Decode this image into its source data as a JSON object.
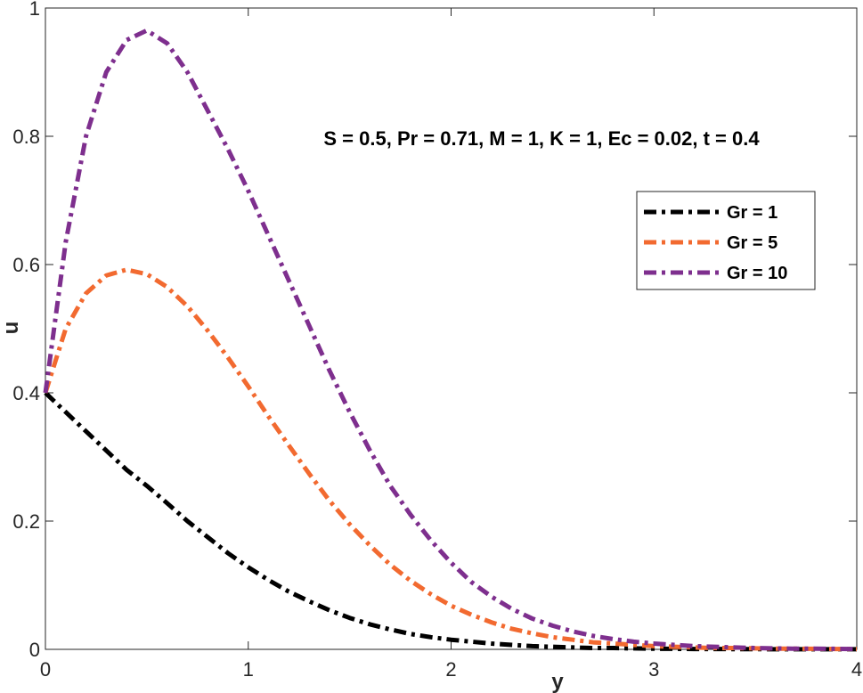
{
  "chart_data": {
    "type": "line",
    "title": "",
    "xlabel": "y",
    "ylabel": "u",
    "xlim": [
      0,
      4
    ],
    "ylim": [
      0,
      1
    ],
    "xticks": [
      "0",
      "1",
      "2",
      "3",
      "4"
    ],
    "yticks": [
      "0",
      "0.2",
      "0.4",
      "0.6",
      "0.8",
      "1"
    ],
    "grid": false,
    "legend_position": "upper-right",
    "annotation": "S = 0.5, Pr = 0.71, M = 1, K = 1, Ec = 0.02, t = 0.4",
    "x": [
      0,
      0.1,
      0.2,
      0.3,
      0.4,
      0.5,
      0.6,
      0.7,
      0.8,
      0.9,
      1.0,
      1.1,
      1.2,
      1.3,
      1.4,
      1.5,
      1.6,
      1.7,
      1.8,
      1.9,
      2.0,
      2.1,
      2.2,
      2.3,
      2.4,
      2.5,
      2.6,
      2.7,
      2.8,
      2.9,
      3.0,
      3.1,
      3.2,
      3.3,
      3.4,
      3.5,
      3.6,
      3.7,
      3.8,
      3.9,
      4.0
    ],
    "series": [
      {
        "name": "Gr  = 1",
        "color": "#000000",
        "values": [
          0.4,
          0.37,
          0.34,
          0.31,
          0.28,
          0.255,
          0.228,
          0.2,
          0.175,
          0.15,
          0.128,
          0.108,
          0.09,
          0.075,
          0.061,
          0.049,
          0.039,
          0.031,
          0.024,
          0.019,
          0.015,
          0.012,
          0.009,
          0.007,
          0.005,
          0.004,
          0.003,
          0.002,
          0.002,
          0.0015,
          0.001,
          0.0008,
          0.0006,
          0.0005,
          0.0004,
          0.0003,
          0.0002,
          0.0002,
          0.0001,
          0.0001,
          0.0001
        ]
      },
      {
        "name": "Gr  = 5",
        "color": "#F26A30",
        "values": [
          0.4,
          0.5,
          0.555,
          0.583,
          0.592,
          0.585,
          0.565,
          0.535,
          0.497,
          0.455,
          0.41,
          0.363,
          0.318,
          0.274,
          0.232,
          0.195,
          0.162,
          0.132,
          0.107,
          0.086,
          0.068,
          0.054,
          0.042,
          0.032,
          0.025,
          0.019,
          0.015,
          0.011,
          0.009,
          0.007,
          0.005,
          0.004,
          0.003,
          0.002,
          0.002,
          0.0015,
          0.001,
          0.001,
          0.0008,
          0.0005,
          0.0005
        ]
      },
      {
        "name": "Gr  = 10",
        "color": "#7E2F8E",
        "values": [
          0.4,
          0.635,
          0.8,
          0.9,
          0.95,
          0.965,
          0.945,
          0.9,
          0.84,
          0.78,
          0.715,
          0.645,
          0.575,
          0.505,
          0.435,
          0.37,
          0.31,
          0.255,
          0.21,
          0.17,
          0.135,
          0.105,
          0.082,
          0.063,
          0.048,
          0.037,
          0.028,
          0.021,
          0.016,
          0.012,
          0.009,
          0.007,
          0.005,
          0.004,
          0.003,
          0.002,
          0.0015,
          0.001,
          0.001,
          0.0008,
          0.0005
        ]
      }
    ]
  }
}
